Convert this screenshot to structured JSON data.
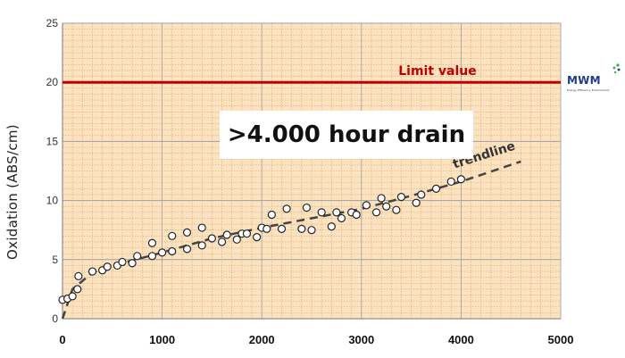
{
  "chart_data": {
    "type": "scatter",
    "title": ">4.000 hour drain",
    "ylabel": "Oxidation (ABS/cm)",
    "xlabel": "",
    "xlim": [
      0,
      5000
    ],
    "ylim": [
      0,
      25
    ],
    "xticks": [
      0,
      1000,
      2000,
      3000,
      4000,
      5000
    ],
    "yticks": [
      0,
      5,
      10,
      15,
      20,
      25
    ],
    "grid": true,
    "limit": {
      "label": "Limit value",
      "value": 20,
      "color": "#c00000"
    },
    "trendline": {
      "label": "trendline",
      "x": [
        0,
        100,
        300,
        600,
        1000,
        1500,
        2000,
        2500,
        3000,
        3500,
        4000,
        4600
      ],
      "y": [
        0,
        2.5,
        3.9,
        4.7,
        5.6,
        6.8,
        7.7,
        8.5,
        9.3,
        10.4,
        11.6,
        13.3
      ]
    },
    "series": [
      {
        "x": [
          0,
          50,
          100,
          150,
          160,
          300,
          400,
          450,
          550,
          600,
          700,
          750,
          900,
          900,
          1000,
          1100,
          1100,
          1250,
          1250,
          1400,
          1400,
          1500,
          1600,
          1650,
          1750,
          1800,
          1850,
          1950,
          2000,
          2050,
          2100,
          2200,
          2250,
          2400,
          2450,
          2500,
          2600,
          2700,
          2750,
          2800,
          2900,
          2950,
          3050,
          3150,
          3200,
          3250,
          3350,
          3400,
          3550,
          3600,
          3750,
          3900,
          4000
        ],
        "y": [
          1.6,
          1.7,
          1.9,
          2.5,
          3.6,
          4.0,
          4.1,
          4.4,
          4.5,
          4.8,
          4.7,
          5.3,
          5.3,
          6.4,
          5.6,
          5.7,
          7.0,
          5.9,
          7.3,
          6.2,
          7.7,
          6.8,
          6.5,
          7.1,
          6.7,
          7.2,
          7.2,
          6.9,
          7.7,
          7.6,
          8.8,
          7.6,
          9.3,
          7.6,
          9.4,
          7.5,
          9.0,
          7.8,
          9.0,
          8.5,
          9.0,
          8.8,
          9.6,
          9.0,
          10.2,
          9.5,
          9.2,
          10.3,
          9.8,
          10.5,
          11.0,
          11.6,
          11.8
        ]
      }
    ]
  },
  "logo": {
    "word": "MWM",
    "sub": "Energy. Efficiency. Environment."
  },
  "colors": {
    "plot_bg": "#fbe3c1",
    "minor_grid": "#e8a060",
    "major_grid": "#a0a0a0",
    "limit": "#c00000",
    "trend": "#444444"
  }
}
